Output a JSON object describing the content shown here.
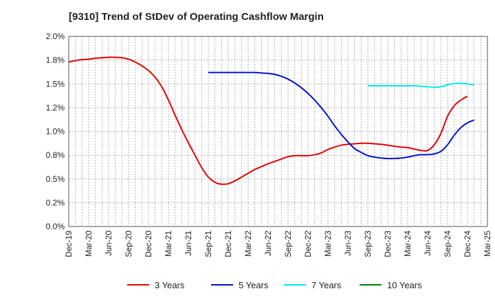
{
  "chart_data": {
    "type": "line",
    "title": "[9310]  Trend of StDev of Operating Cashflow Margin",
    "xlabel": "",
    "ylabel": "",
    "ylim": [
      0.0,
      2.0
    ],
    "yticks": [
      0.0,
      0.25,
      0.5,
      0.75,
      1.0,
      1.25,
      1.5,
      1.75,
      2.0
    ],
    "ytick_labels": [
      "0.0%",
      "0.2%",
      "0.5%",
      "0.8%",
      "1.0%",
      "1.2%",
      "1.5%",
      "1.8%",
      "2.0%"
    ],
    "x_range_months": [
      "2019-12",
      "2025-03"
    ],
    "xtick_labels": [
      "Dec-19",
      "Mar-20",
      "Jun-20",
      "Sep-20",
      "Dec-20",
      "Mar-21",
      "Jun-21",
      "Sep-21",
      "Dec-21",
      "Mar-22",
      "Jun-22",
      "Sep-22",
      "Dec-22",
      "Mar-23",
      "Jun-23",
      "Sep-23",
      "Dec-23",
      "Mar-24",
      "Jun-24",
      "Sep-24",
      "Dec-24",
      "Mar-25"
    ],
    "grid": true,
    "legend_position": "bottom",
    "series": [
      {
        "name": "3 Years",
        "color": "#e00000",
        "points": [
          [
            "2019-12",
            1.73
          ],
          [
            "2020-01",
            1.745
          ],
          [
            "2020-02",
            1.755
          ],
          [
            "2020-03",
            1.76
          ],
          [
            "2020-04",
            1.77
          ],
          [
            "2020-05",
            1.775
          ],
          [
            "2020-06",
            1.78
          ],
          [
            "2020-07",
            1.78
          ],
          [
            "2020-08",
            1.775
          ],
          [
            "2020-09",
            1.76
          ],
          [
            "2020-10",
            1.73
          ],
          [
            "2020-11",
            1.69
          ],
          [
            "2020-12",
            1.64
          ],
          [
            "2021-01",
            1.57
          ],
          [
            "2021-02",
            1.47
          ],
          [
            "2021-03",
            1.33
          ],
          [
            "2021-04",
            1.17
          ],
          [
            "2021-05",
            1.02
          ],
          [
            "2021-06",
            0.88
          ],
          [
            "2021-07",
            0.75
          ],
          [
            "2021-08",
            0.62
          ],
          [
            "2021-09",
            0.52
          ],
          [
            "2021-10",
            0.465
          ],
          [
            "2021-11",
            0.445
          ],
          [
            "2021-12",
            0.45
          ],
          [
            "2022-01",
            0.48
          ],
          [
            "2022-02",
            0.52
          ],
          [
            "2022-03",
            0.56
          ],
          [
            "2022-04",
            0.6
          ],
          [
            "2022-05",
            0.63
          ],
          [
            "2022-06",
            0.66
          ],
          [
            "2022-07",
            0.685
          ],
          [
            "2022-08",
            0.71
          ],
          [
            "2022-09",
            0.735
          ],
          [
            "2022-10",
            0.745
          ],
          [
            "2022-11",
            0.745
          ],
          [
            "2022-12",
            0.745
          ],
          [
            "2023-01",
            0.755
          ],
          [
            "2023-02",
            0.775
          ],
          [
            "2023-03",
            0.81
          ],
          [
            "2023-04",
            0.835
          ],
          [
            "2023-05",
            0.855
          ],
          [
            "2023-06",
            0.865
          ],
          [
            "2023-07",
            0.87
          ],
          [
            "2023-08",
            0.875
          ],
          [
            "2023-09",
            0.875
          ],
          [
            "2023-10",
            0.87
          ],
          [
            "2023-11",
            0.865
          ],
          [
            "2023-12",
            0.855
          ],
          [
            "2024-01",
            0.845
          ],
          [
            "2024-02",
            0.835
          ],
          [
            "2024-03",
            0.83
          ],
          [
            "2024-04",
            0.815
          ],
          [
            "2024-05",
            0.8
          ],
          [
            "2024-06",
            0.8
          ],
          [
            "2024-07",
            0.86
          ],
          [
            "2024-08",
            0.98
          ],
          [
            "2024-09",
            1.16
          ],
          [
            "2024-10",
            1.27
          ],
          [
            "2024-11",
            1.33
          ],
          [
            "2024-12",
            1.37
          ]
        ]
      },
      {
        "name": "5 Years",
        "color": "#0010d0",
        "points": [
          [
            "2021-09",
            1.62
          ],
          [
            "2021-10",
            1.62
          ],
          [
            "2021-11",
            1.62
          ],
          [
            "2021-12",
            1.62
          ],
          [
            "2022-01",
            1.62
          ],
          [
            "2022-02",
            1.62
          ],
          [
            "2022-03",
            1.62
          ],
          [
            "2022-04",
            1.62
          ],
          [
            "2022-05",
            1.615
          ],
          [
            "2022-06",
            1.61
          ],
          [
            "2022-07",
            1.6
          ],
          [
            "2022-08",
            1.58
          ],
          [
            "2022-09",
            1.55
          ],
          [
            "2022-10",
            1.51
          ],
          [
            "2022-11",
            1.46
          ],
          [
            "2022-12",
            1.4
          ],
          [
            "2023-01",
            1.33
          ],
          [
            "2023-02",
            1.25
          ],
          [
            "2023-03",
            1.16
          ],
          [
            "2023-04",
            1.06
          ],
          [
            "2023-05",
            0.97
          ],
          [
            "2023-06",
            0.89
          ],
          [
            "2023-07",
            0.82
          ],
          [
            "2023-08",
            0.78
          ],
          [
            "2023-09",
            0.745
          ],
          [
            "2023-10",
            0.73
          ],
          [
            "2023-11",
            0.72
          ],
          [
            "2023-12",
            0.715
          ],
          [
            "2024-01",
            0.715
          ],
          [
            "2024-02",
            0.72
          ],
          [
            "2024-03",
            0.73
          ],
          [
            "2024-04",
            0.745
          ],
          [
            "2024-05",
            0.755
          ],
          [
            "2024-06",
            0.755
          ],
          [
            "2024-07",
            0.765
          ],
          [
            "2024-08",
            0.79
          ],
          [
            "2024-09",
            0.86
          ],
          [
            "2024-10",
            0.96
          ],
          [
            "2024-11",
            1.04
          ],
          [
            "2024-12",
            1.09
          ],
          [
            "2025-01",
            1.12
          ]
        ]
      },
      {
        "name": "7 Years",
        "color": "#00e8e8",
        "points": [
          [
            "2023-09",
            1.48
          ],
          [
            "2023-10",
            1.48
          ],
          [
            "2023-11",
            1.48
          ],
          [
            "2023-12",
            1.48
          ],
          [
            "2024-01",
            1.48
          ],
          [
            "2024-02",
            1.48
          ],
          [
            "2024-03",
            1.48
          ],
          [
            "2024-04",
            1.48
          ],
          [
            "2024-05",
            1.475
          ],
          [
            "2024-06",
            1.47
          ],
          [
            "2024-07",
            1.465
          ],
          [
            "2024-08",
            1.47
          ],
          [
            "2024-09",
            1.49
          ],
          [
            "2024-10",
            1.505
          ],
          [
            "2024-11",
            1.505
          ],
          [
            "2024-12",
            1.5
          ],
          [
            "2025-01",
            1.49
          ]
        ]
      },
      {
        "name": "10 Years",
        "color": "#008000",
        "points": []
      }
    ]
  }
}
